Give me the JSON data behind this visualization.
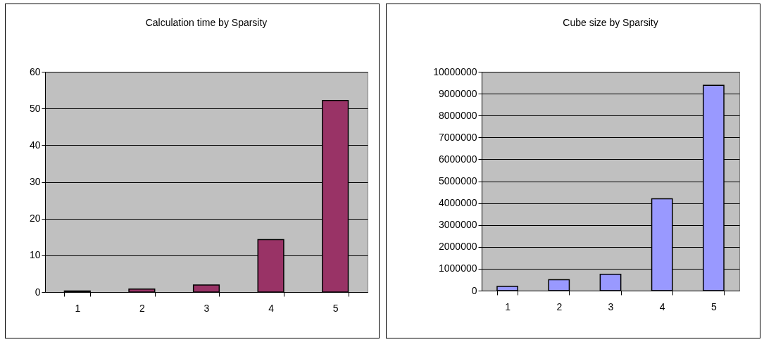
{
  "chart_data": [
    {
      "type": "bar",
      "title": "Calculation time by Sparsity",
      "categories": [
        "1",
        "2",
        "3",
        "4",
        "5"
      ],
      "values": [
        0.3,
        0.8,
        1.9,
        14.3,
        52.2
      ],
      "color": "#993366",
      "ylim": [
        0,
        60
      ],
      "yticks": [
        0,
        10,
        20,
        30,
        40,
        50,
        60
      ],
      "grid": "y"
    },
    {
      "type": "bar",
      "title": "Cube size by Sparsity",
      "categories": [
        "1",
        "2",
        "3",
        "4",
        "5"
      ],
      "values": [
        190000,
        500000,
        750000,
        4200000,
        9380000
      ],
      "color": "#9999ff",
      "ylim": [
        0,
        10000000
      ],
      "yticks": [
        0,
        1000000,
        2000000,
        3000000,
        4000000,
        5000000,
        6000000,
        7000000,
        8000000,
        9000000,
        10000000
      ],
      "grid": "y"
    }
  ]
}
